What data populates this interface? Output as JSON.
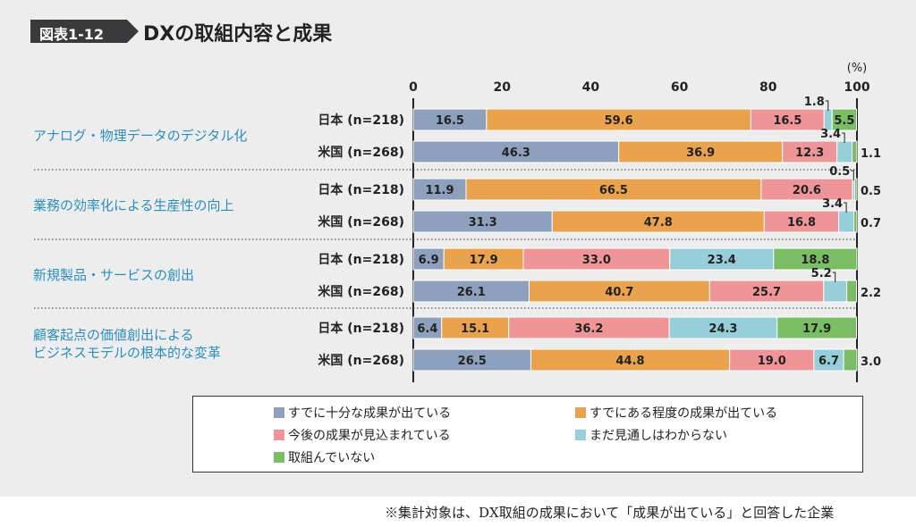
{
  "figure": {
    "number": "図表1-12",
    "title": "DXの取組内容と成果"
  },
  "chart_data": {
    "type": "bar",
    "orientation": "horizontal",
    "stacked": true,
    "unit": "(%)",
    "xlim": [
      0,
      100
    ],
    "xticks": [
      "0",
      "20",
      "40",
      "60",
      "80",
      "100"
    ],
    "grid": false,
    "series": [
      {
        "name": "すでに十分な成果が出ている",
        "color": "#8da0bd"
      },
      {
        "name": "すでにある程度の成果が出ている",
        "color": "#eba24d"
      },
      {
        "name": "今後の成果が見込まれている",
        "color": "#ef9497"
      },
      {
        "name": "まだ見通しはわからない",
        "color": "#96ced9"
      },
      {
        "name": "取組んでいない",
        "color": "#7bbd65"
      }
    ],
    "groups": [
      {
        "lines": [
          "アナログ・物理データのデジタル化"
        ],
        "bars": [
          {
            "label": "日本 (n=218)",
            "values": [
              16.5,
              59.6,
              16.5,
              1.8,
              5.5
            ],
            "shown": [
              "16.5",
              "59.6",
              "16.5",
              "1.8",
              "5.5"
            ]
          },
          {
            "label": "米国 (n=268)",
            "values": [
              46.3,
              36.9,
              12.3,
              3.4,
              1.1
            ],
            "shown": [
              "46.3",
              "36.9",
              "12.3",
              "3.4",
              "1.1"
            ]
          }
        ]
      },
      {
        "lines": [
          "業務の効率化による生産性の向上"
        ],
        "bars": [
          {
            "label": "日本 (n=218)",
            "values": [
              11.9,
              66.5,
              20.6,
              0.5,
              0.5
            ],
            "shown": [
              "11.9",
              "66.5",
              "20.6",
              "0.5",
              "0.5"
            ]
          },
          {
            "label": "米国 (n=268)",
            "values": [
              31.3,
              47.8,
              16.8,
              3.4,
              0.7
            ],
            "shown": [
              "31.3",
              "47.8",
              "16.8",
              "3.4",
              "0.7"
            ]
          }
        ]
      },
      {
        "lines": [
          "新規製品・サービスの創出"
        ],
        "bars": [
          {
            "label": "日本 (n=218)",
            "values": [
              6.9,
              17.9,
              33.0,
              23.4,
              18.8
            ],
            "shown": [
              "6.9",
              "17.9",
              "33.0",
              "23.4",
              "18.8"
            ]
          },
          {
            "label": "米国 (n=268)",
            "values": [
              26.1,
              40.7,
              25.7,
              5.2,
              2.2
            ],
            "shown": [
              "26.1",
              "40.7",
              "25.7",
              "5.2",
              "2.2"
            ]
          }
        ]
      },
      {
        "lines": [
          "顧客起点の価値創出による",
          "ビジネスモデルの根本的な変革"
        ],
        "bars": [
          {
            "label": "日本 (n=218)",
            "values": [
              6.4,
              15.1,
              36.2,
              24.3,
              17.9
            ],
            "shown": [
              "6.4",
              "15.1",
              "36.2",
              "24.3",
              "17.9"
            ]
          },
          {
            "label": "米国 (n=268)",
            "values": [
              26.5,
              44.8,
              19.0,
              6.7,
              3.0
            ],
            "shown": [
              "26.5",
              "44.8",
              "19.0",
              "6.7",
              "3.0"
            ]
          }
        ]
      }
    ]
  },
  "note": "※集計対象は、DX取組の成果において「成果が出ている」と回答した企業"
}
